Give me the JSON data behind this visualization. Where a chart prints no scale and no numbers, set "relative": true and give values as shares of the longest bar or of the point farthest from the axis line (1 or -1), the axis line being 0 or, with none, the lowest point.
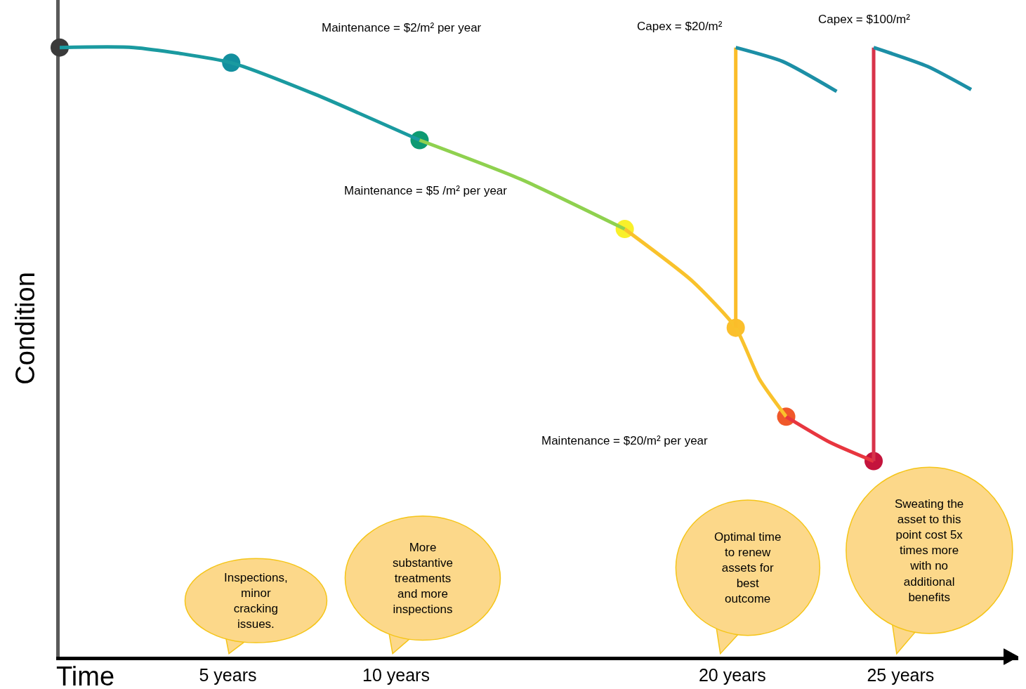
{
  "chart_data": {
    "type": "line",
    "relative": true,
    "xlabel": "Time",
    "ylabel": "Condition",
    "xlim": [
      0,
      28.5
    ],
    "xticks": [
      {
        "value": 5,
        "label": "5 years"
      },
      {
        "value": 10,
        "label": "10 years"
      },
      {
        "value": 20,
        "label": "20 years"
      },
      {
        "value": 25,
        "label": "25 years"
      }
    ],
    "series": [
      {
        "color": "#1a9aa0",
        "x": [
          0,
          2.2,
          5.1,
          7.6,
          10.7
        ],
        "values": [
          1.0,
          1.0,
          0.975,
          0.923,
          0.848
        ]
      },
      {
        "color": "#8fd14f",
        "x": [
          10.7,
          13.7,
          16.8
        ],
        "values": [
          0.848,
          0.784,
          0.702
        ]
      },
      {
        "color": "#f9c22c",
        "x": [
          16.8,
          18.8,
          20.1,
          20.8,
          21.6
        ],
        "values": [
          0.702,
          0.617,
          0.54,
          0.456,
          0.394
        ]
      },
      {
        "color": "#e8363f",
        "x": [
          21.6,
          22.9,
          24.2
        ],
        "values": [
          0.394,
          0.352,
          0.321
        ]
      },
      {
        "color": "#fbbd2a",
        "x": [
          20.1,
          20.1
        ],
        "values": [
          0.54,
          1.0
        ]
      },
      {
        "color": "#1c8fa6",
        "x": [
          20.1,
          21.5,
          23.1
        ],
        "values": [
          1.0,
          0.977,
          0.928
        ]
      },
      {
        "color": "#d8334a",
        "x": [
          24.2,
          24.2
        ],
        "values": [
          0.321,
          1.0
        ]
      },
      {
        "color": "#1c8fa6",
        "x": [
          24.2,
          25.8,
          27.1
        ],
        "values": [
          1.0,
          0.969,
          0.931
        ]
      },
      {
        "type": "scatter",
        "x": [
          0,
          5.1,
          10.7,
          16.8,
          20.1,
          21.6,
          24.2
        ],
        "values": [
          1.0,
          0.975,
          0.848,
          0.702,
          0.54,
          0.394,
          0.321
        ],
        "colors": [
          "#3a3a3a",
          "#138f9e",
          "#0d9a72",
          "#f9f02a",
          "#fbbf2c",
          "#f0582a",
          "#c4143c"
        ]
      }
    ],
    "annotations": [
      "Maintenance = $2/m² per year",
      "Maintenance = $5 /m² per year",
      "Capex = $20/m²",
      "Capex = $100/m²",
      "Maintenance = $20/m² per year",
      "Inspections,\nminor\ncracking\nissues.",
      "More\nsubstantive\ntreatments\nand more\ninspections",
      "Optimal time\nto renew\nassets for\nbest\noutcome",
      "Sweating the\nasset to this\npoint cost 5x\ntimes more\nwith no\nadditional\nbenefits"
    ],
    "line_style": "solid"
  }
}
